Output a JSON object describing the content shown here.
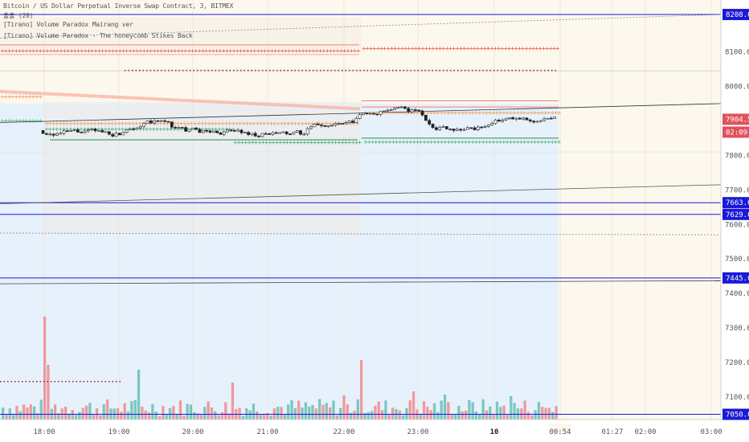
{
  "header": {
    "title": "Bitcoin / US Dollar Perpetual Inverse Swap Contract, 3, BITMEX",
    "ma_label": "출출 (20)",
    "indicator_1": "[Tirano] Volume Paradox Mairang ver",
    "indicator_2": "[Tirano] Volume Paradox - The honeycomb Stikes Back"
  },
  "chart_data": {
    "type": "candlestick",
    "title": "Bitcoin / US Dollar Perpetual Inverse Swap Contract, 3, BITMEX",
    "y_axis_ticks": [
      7050.0,
      7100.0,
      7200.0,
      7300.0,
      7400.0,
      7500.0,
      7600.0,
      7700.0,
      7800.0,
      8000.0,
      8100.0
    ],
    "x_axis_ticks": [
      "18:00",
      "19:00",
      "20:00",
      "21:00",
      "22:00",
      "23:00",
      "10",
      "00:54",
      "01:27",
      "02:00",
      "03:00"
    ],
    "ylim": [
      7035,
      8250
    ],
    "price_tags": [
      {
        "label": "8208.0",
        "value": 8208.0,
        "color": "#1a1ad6"
      },
      {
        "label": "7904.5",
        "value": 7904.5,
        "color": "#e0525c"
      },
      {
        "label": "02:09",
        "value": 7880,
        "color": "#e0525c"
      },
      {
        "label": "7663.0",
        "value": 7663.0,
        "color": "#1a1ad6"
      },
      {
        "label": "7629.0",
        "value": 7629.0,
        "color": "#1a1ad6"
      },
      {
        "label": "7445.0",
        "value": 7445.0,
        "color": "#1a1ad6"
      },
      {
        "label": "7050.0",
        "value": 7050.0,
        "color": "#1a1ad6"
      }
    ],
    "last_price": 7904.5,
    "countdown": "02:09",
    "horizontal_levels": [
      8208,
      7663,
      7629,
      7445,
      7050
    ],
    "colors": {
      "up": "#26a69a",
      "down": "#ef5350",
      "vol_up": "#7cc7c0",
      "vol_down": "#ee9a9e",
      "level": "#1a1ad6"
    }
  }
}
